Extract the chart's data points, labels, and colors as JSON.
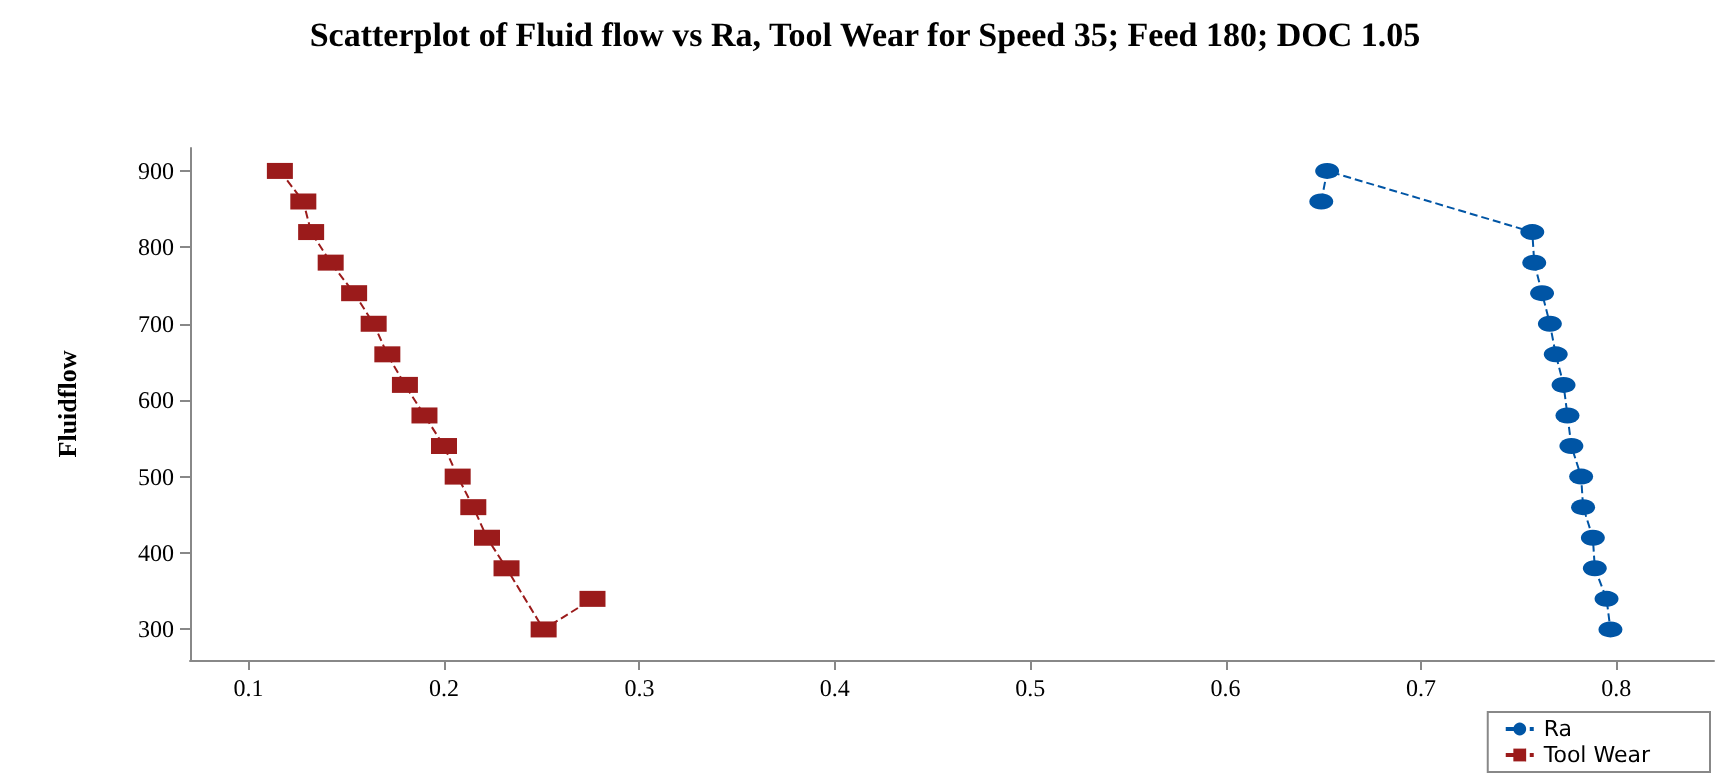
{
  "chart_data": {
    "type": "line",
    "title": "Scatterplot of Fluid flow vs Ra, Tool Wear for Speed 35; Feed 180; DOC 1.05",
    "ylabel": "Fluidflow",
    "series": [
      {
        "name": "Ra",
        "color": "#0055a5",
        "marker": "circle",
        "x": [
          0.649,
          0.652,
          0.757,
          0.758,
          0.762,
          0.766,
          0.769,
          0.773,
          0.775,
          0.777,
          0.782,
          0.783,
          0.788,
          0.789,
          0.795,
          0.797
        ],
        "values": [
          860,
          900,
          820,
          780,
          740,
          700,
          660,
          620,
          580,
          540,
          500,
          460,
          420,
          380,
          340,
          300
        ]
      },
      {
        "name": "Tool Wear",
        "color": "#9b1b1b",
        "marker": "square",
        "x": [
          0.116,
          0.128,
          0.132,
          0.142,
          0.154,
          0.164,
          0.171,
          0.18,
          0.19,
          0.2,
          0.207,
          0.215,
          0.222,
          0.232,
          0.251,
          0.276
        ],
        "values": [
          900,
          860,
          820,
          780,
          740,
          700,
          660,
          620,
          580,
          540,
          500,
          460,
          420,
          380,
          300,
          340
        ]
      }
    ],
    "xlim": [
      0.07,
      0.85
    ],
    "xticks": [
      0.1,
      0.2,
      0.3,
      0.4,
      0.5,
      0.6,
      0.7,
      0.8
    ],
    "ylim": [
      260,
      930
    ],
    "yticks": [
      300,
      400,
      500,
      600,
      700,
      800,
      900
    ],
    "line_style": "dashed",
    "grid": false,
    "legend": "bottom right"
  }
}
